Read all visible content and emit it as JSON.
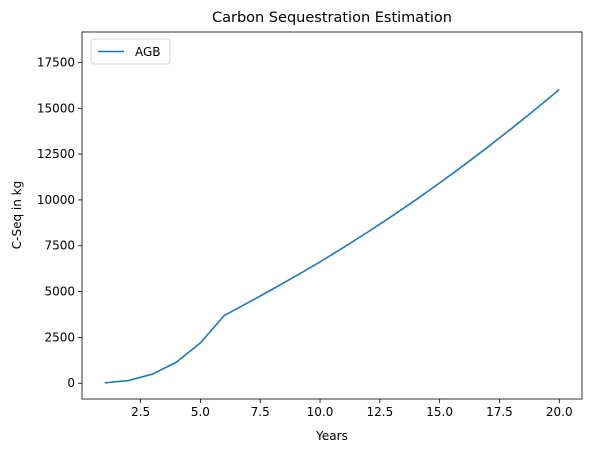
{
  "chart_data": {
    "type": "line",
    "title": "Carbon Sequestration Estimation",
    "xlabel": "Years",
    "ylabel": "C-Seq in kg",
    "xlim": [
      0.05,
      20.95
    ],
    "ylim": [
      -860,
      19160
    ],
    "xticks": [
      2.5,
      5.0,
      7.5,
      10.0,
      12.5,
      15.0,
      17.5,
      20.0
    ],
    "xtick_labels": [
      "2.5",
      "5.0",
      "7.5",
      "10.0",
      "12.5",
      "15.0",
      "17.5",
      "20.0"
    ],
    "yticks": [
      0,
      2500,
      5000,
      7500,
      10000,
      12500,
      15000,
      17500
    ],
    "ytick_labels": [
      "0",
      "2500",
      "5000",
      "7500",
      "10000",
      "12500",
      "15000",
      "17500"
    ],
    "grid": false,
    "legend_position": "upper-left",
    "series": [
      {
        "name": "AGB",
        "color": "#1f77b4",
        "x": [
          1,
          2,
          3,
          4,
          5,
          6,
          7,
          8,
          9,
          10,
          11,
          12,
          13,
          14,
          15,
          16,
          17,
          18,
          19,
          20
        ],
        "y": [
          20,
          150,
          500,
          1150,
          2200,
          3700,
          4400,
          5120,
          5860,
          6620,
          7420,
          8250,
          9110,
          10000,
          10930,
          11880,
          12870,
          13890,
          14940,
          16020
        ]
      }
    ]
  }
}
